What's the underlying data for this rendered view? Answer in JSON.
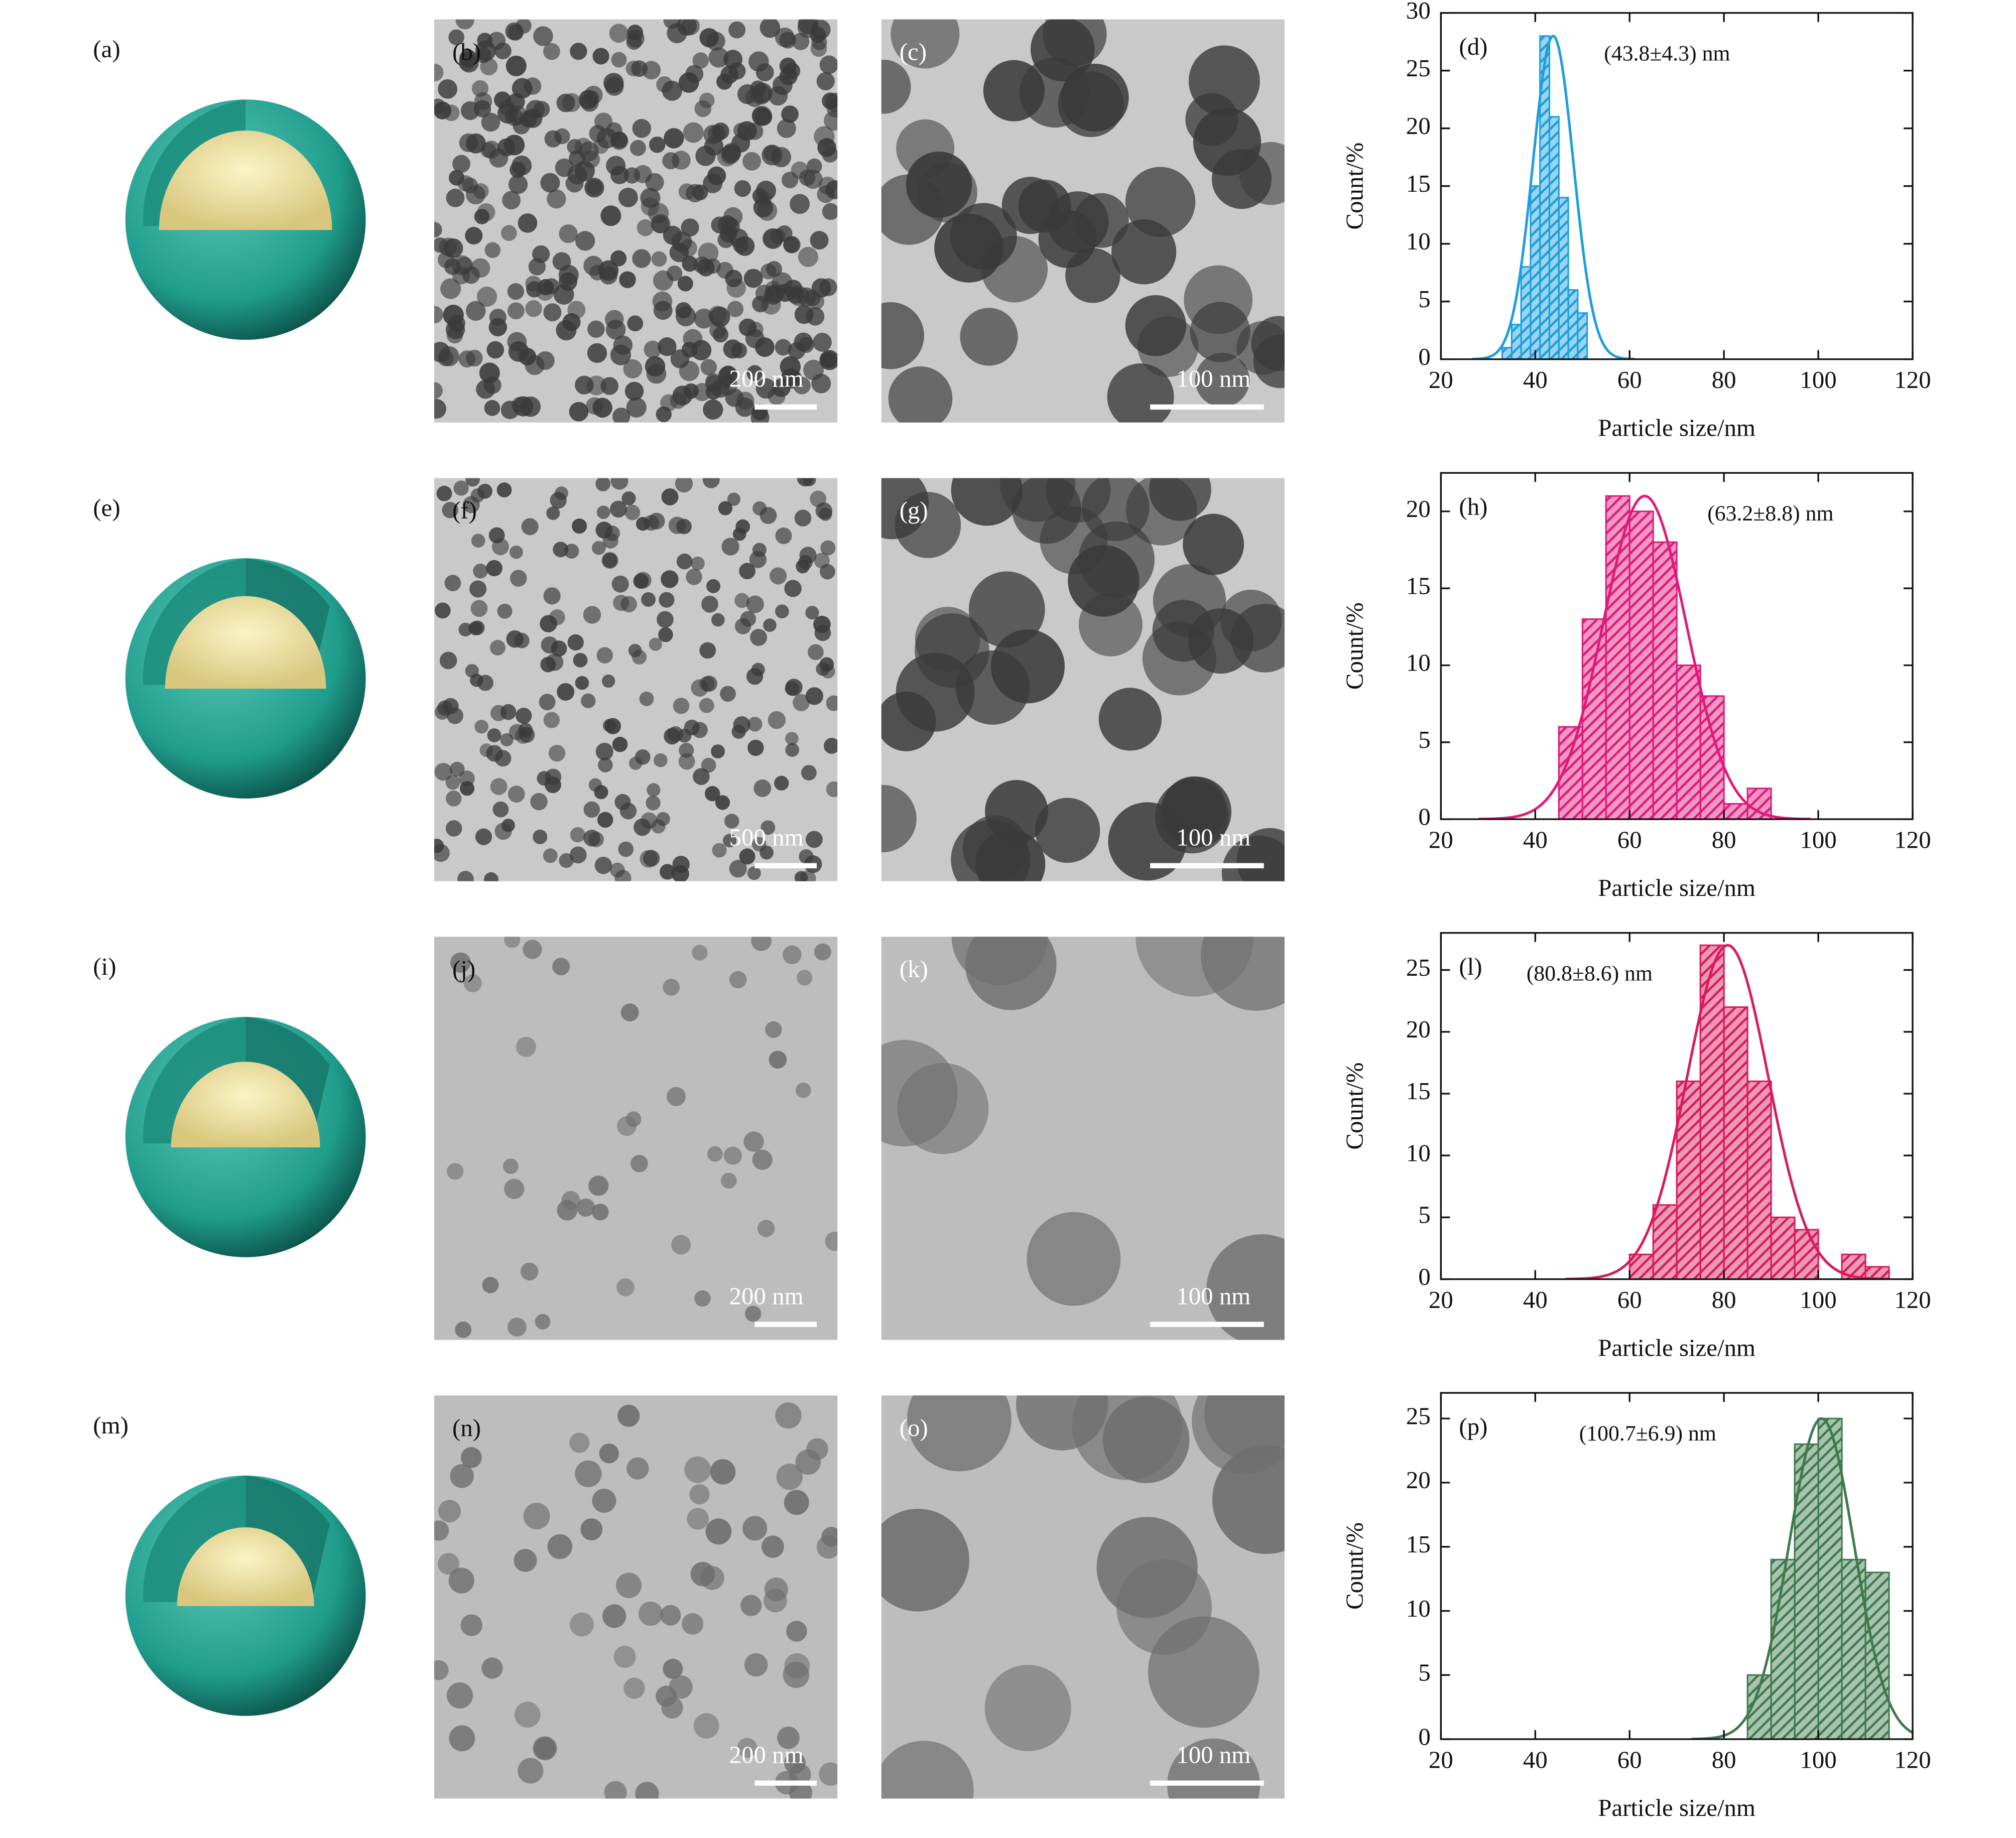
{
  "rows": [
    {
      "schematic_label": "(a)",
      "tem_low": {
        "label": "(b)",
        "scale": "200 nm"
      },
      "tem_high": {
        "label": "(c)",
        "scale": "100 nm"
      }
    },
    {
      "schematic_label": "(e)",
      "tem_low": {
        "label": "(f)",
        "scale": "500 nm"
      },
      "tem_high": {
        "label": "(g)",
        "scale": "100 nm"
      }
    },
    {
      "schematic_label": "(i)",
      "tem_low": {
        "label": "(j)",
        "scale": "200 nm"
      },
      "tem_high": {
        "label": "(k)",
        "scale": "100 nm"
      }
    },
    {
      "schematic_label": "(m)",
      "tem_low": {
        "label": "(n)",
        "scale": "200 nm"
      },
      "tem_high": {
        "label": "(o)",
        "scale": "100 nm"
      }
    }
  ],
  "chart_data": [
    {
      "type": "histogram",
      "panel_label": "(d)",
      "annotation": "(43.8±4.3) nm",
      "color": "#1e9fdc",
      "bins": [
        33,
        35,
        37,
        39,
        41,
        43,
        45,
        47,
        49,
        51
      ],
      "counts": [
        1,
        3,
        8,
        15,
        28,
        21,
        14,
        6,
        4
      ],
      "fit": {
        "mean": 43.8,
        "sd": 4.3,
        "peak": 28
      },
      "xlabel": "Particle size/nm",
      "ylabel": "Count/%",
      "xlim": [
        20,
        120
      ],
      "xticks": [
        20,
        40,
        60,
        80,
        100,
        120
      ],
      "ylim": [
        0,
        30
      ],
      "yticks": [
        0,
        5,
        10,
        15,
        20,
        25,
        30
      ]
    },
    {
      "type": "histogram",
      "panel_label": "(h)",
      "annotation": "(63.2±8.8) nm",
      "color": "#e0197b",
      "bins": [
        45,
        50,
        55,
        60,
        65,
        70,
        75,
        80,
        85,
        90
      ],
      "counts": [
        6,
        13,
        21,
        20,
        18,
        10,
        8,
        1,
        2
      ],
      "fit": {
        "mean": 63.2,
        "sd": 8.8,
        "peak": 21
      },
      "xlabel": "Particle size/nm",
      "ylabel": "Count/%",
      "xlim": [
        20,
        120
      ],
      "xticks": [
        20,
        40,
        60,
        80,
        100,
        120
      ],
      "ylim": [
        0,
        22.5
      ],
      "yticks": [
        0,
        5,
        10,
        15,
        20
      ]
    },
    {
      "type": "histogram",
      "panel_label": "(l)",
      "annotation": "(80.8±8.6) nm",
      "color": "#d81b5c",
      "bins": [
        60,
        65,
        70,
        75,
        80,
        85,
        90,
        95,
        100,
        105,
        110,
        115
      ],
      "counts": [
        2,
        6,
        16,
        27,
        22,
        16,
        5,
        4,
        0,
        2,
        1
      ],
      "fit": {
        "mean": 80.8,
        "sd": 8.6,
        "peak": 27
      },
      "xlabel": "Particle size/nm",
      "ylabel": "Count/%",
      "xlim": [
        20,
        120
      ],
      "xticks": [
        20,
        40,
        60,
        80,
        100,
        120
      ],
      "ylim": [
        0,
        28
      ],
      "yticks": [
        0,
        5,
        10,
        15,
        20,
        25
      ]
    },
    {
      "type": "histogram",
      "panel_label": "(p)",
      "annotation": "(100.7±6.9) nm",
      "color": "#3f7a4c",
      "bins": [
        85,
        90,
        95,
        100,
        105,
        110,
        115
      ],
      "counts": [
        5,
        14,
        23,
        25,
        14,
        13
      ],
      "fit": {
        "mean": 100.7,
        "sd": 6.9,
        "peak": 25
      },
      "xlabel": "Particle size/nm",
      "ylabel": "Count/%",
      "xlim": [
        20,
        120
      ],
      "xticks": [
        20,
        40,
        60,
        80,
        100,
        120
      ],
      "ylim": [
        0,
        27
      ],
      "yticks": [
        0,
        5,
        10,
        15,
        20,
        25
      ]
    }
  ]
}
